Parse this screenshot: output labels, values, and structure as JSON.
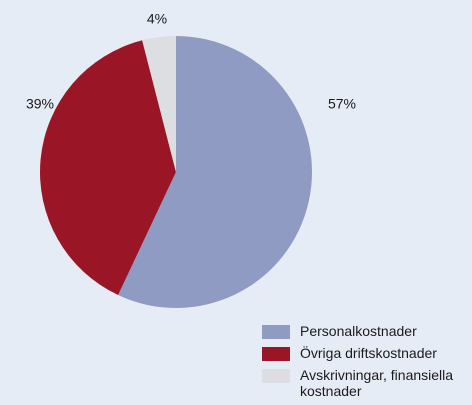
{
  "chart_data": {
    "type": "pie",
    "categories": [
      "Personalkostnader",
      "Övriga driftskostnader",
      "Avskrivningar, finansiella kostnader"
    ],
    "values": [
      57,
      39,
      4
    ],
    "value_labels": [
      "57%",
      "39%",
      "4%"
    ],
    "colors": [
      "#8f9bc2",
      "#9a1626",
      "#dcdee2"
    ],
    "legend": "bottom-right"
  }
}
